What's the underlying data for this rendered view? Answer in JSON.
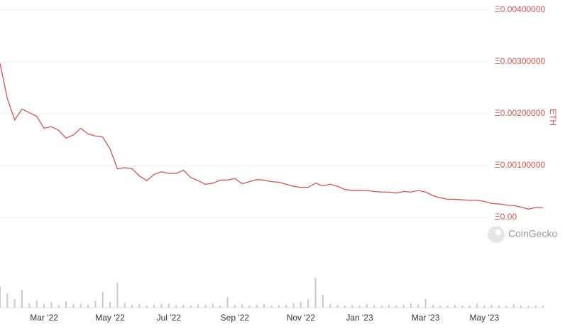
{
  "chart_data": {
    "type": "line",
    "y_label": "ETH",
    "watermark": "CoinGecko",
    "color": "#d9534f",
    "grid": true,
    "ylim": [
      0,
      0.004
    ],
    "yticks": [
      {
        "value": 0,
        "label": "Ξ0.00"
      },
      {
        "value": 0.001,
        "label": "Ξ0.00100000"
      },
      {
        "value": 0.002,
        "label": "Ξ0.00200000"
      },
      {
        "value": 0.003,
        "label": "Ξ0.00300000"
      },
      {
        "value": 0.004,
        "label": "Ξ0.00400000"
      }
    ],
    "categories": [
      null,
      null,
      null,
      null,
      null,
      null,
      "Mar '22",
      null,
      null,
      null,
      null,
      null,
      null,
      null,
      null,
      "May '22",
      null,
      null,
      null,
      null,
      null,
      null,
      null,
      "Jul '22",
      null,
      null,
      null,
      null,
      null,
      null,
      null,
      null,
      "Sep '22",
      null,
      null,
      null,
      null,
      null,
      null,
      null,
      null,
      "Nov '22",
      null,
      null,
      null,
      null,
      null,
      null,
      null,
      "Jan '23",
      null,
      null,
      null,
      null,
      null,
      null,
      null,
      null,
      "Mar '23",
      null,
      null,
      null,
      null,
      null,
      null,
      null,
      "May '23",
      null,
      null,
      null,
      null,
      null,
      null,
      null,
      null
    ],
    "values": [
      0.00297,
      0.00229,
      0.00188,
      0.00209,
      0.00202,
      0.00195,
      0.00172,
      0.00175,
      0.00168,
      0.00153,
      0.00159,
      0.00172,
      0.00161,
      0.00157,
      0.00155,
      0.00132,
      0.00094,
      0.00096,
      0.00094,
      0.0008,
      0.00071,
      0.00083,
      0.00088,
      0.00085,
      0.00085,
      0.00091,
      0.00077,
      0.00071,
      0.00064,
      0.00066,
      0.00072,
      0.00072,
      0.00075,
      0.00065,
      0.00069,
      0.00073,
      0.00072,
      0.00069,
      0.00068,
      0.00064,
      0.0006,
      0.00058,
      0.00058,
      0.00066,
      0.00061,
      0.00064,
      0.0006,
      0.00054,
      0.00052,
      0.00052,
      0.00052,
      0.0005,
      0.00049,
      0.00049,
      0.00047,
      0.0005,
      0.00049,
      0.00052,
      0.00049,
      0.00042,
      0.00038,
      0.00035,
      0.00035,
      0.00034,
      0.00033,
      0.00033,
      0.00031,
      0.00027,
      0.00026,
      0.00024,
      0.00023,
      0.0002,
      0.00016,
      0.00019,
      0.00019
    ],
    "volume": {
      "color": "#c8c8d0",
      "ylim": [
        0,
        50
      ],
      "values": [
        30,
        20,
        12,
        25,
        6,
        10,
        5,
        8,
        4,
        9,
        5,
        6,
        4,
        10,
        22,
        8,
        35,
        6,
        4,
        5,
        3,
        4,
        5,
        6,
        3,
        4,
        3,
        5,
        4,
        6,
        3,
        15,
        4,
        5,
        3,
        4,
        5,
        3,
        4,
        4,
        6,
        8,
        12,
        42,
        18,
        5,
        4,
        3,
        4,
        3,
        5,
        4,
        3,
        4,
        3,
        4,
        6,
        5,
        12,
        4,
        3,
        3,
        4,
        3,
        3,
        6,
        3,
        4,
        3,
        3,
        5,
        3,
        3,
        3,
        3
      ]
    }
  }
}
